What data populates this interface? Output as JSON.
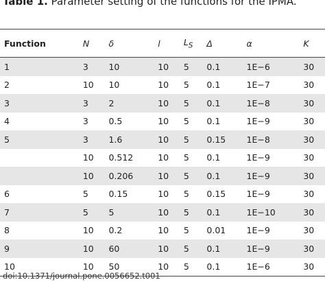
{
  "title": {
    "label": "Table 1.",
    "text": "Parameter setting of the functions for the IPMA."
  },
  "table": {
    "header": [
      "Function",
      "N",
      "δ",
      "l",
      {
        "text": "L",
        "sub": "S"
      },
      "Δ",
      "α",
      "K"
    ],
    "rows": [
      [
        "1",
        "3",
        "10",
        "10",
        "5",
        "0.1",
        "1E−6",
        "30"
      ],
      [
        "2",
        "10",
        "10",
        "10",
        "5",
        "0.1",
        "1E−7",
        "30"
      ],
      [
        "3",
        "3",
        "2",
        "10",
        "5",
        "0.1",
        "1E−8",
        "30"
      ],
      [
        "4",
        "3",
        "0.5",
        "10",
        "5",
        "0.1",
        "1E−9",
        "30"
      ],
      [
        "5",
        "3",
        "1.6",
        "10",
        "5",
        "0.15",
        "1E−8",
        "30"
      ],
      [
        null,
        "10",
        "0.512",
        "10",
        "5",
        "0.1",
        "1E−9",
        "30"
      ],
      [
        null,
        "10",
        "0.206",
        "10",
        "5",
        "0.1",
        "1E−9",
        "30"
      ],
      [
        "6",
        "5",
        "0.15",
        "10",
        "5",
        "0.15",
        "1E−9",
        "30"
      ],
      [
        "7",
        "5",
        "5",
        "10",
        "5",
        "0.1",
        "1E−10",
        "30"
      ],
      [
        "8",
        "10",
        "0.2",
        "10",
        "5",
        "0.01",
        "1E−9",
        "30"
      ],
      [
        "9",
        "10",
        "60",
        "10",
        "5",
        "0.1",
        "1E−9",
        "30"
      ],
      [
        "10",
        "10",
        "50",
        "10",
        "5",
        "0.1",
        "1E−6",
        "30"
      ]
    ]
  },
  "footer": {
    "doi": "doi:10.1371/journal.pone.0056652.t001"
  }
}
